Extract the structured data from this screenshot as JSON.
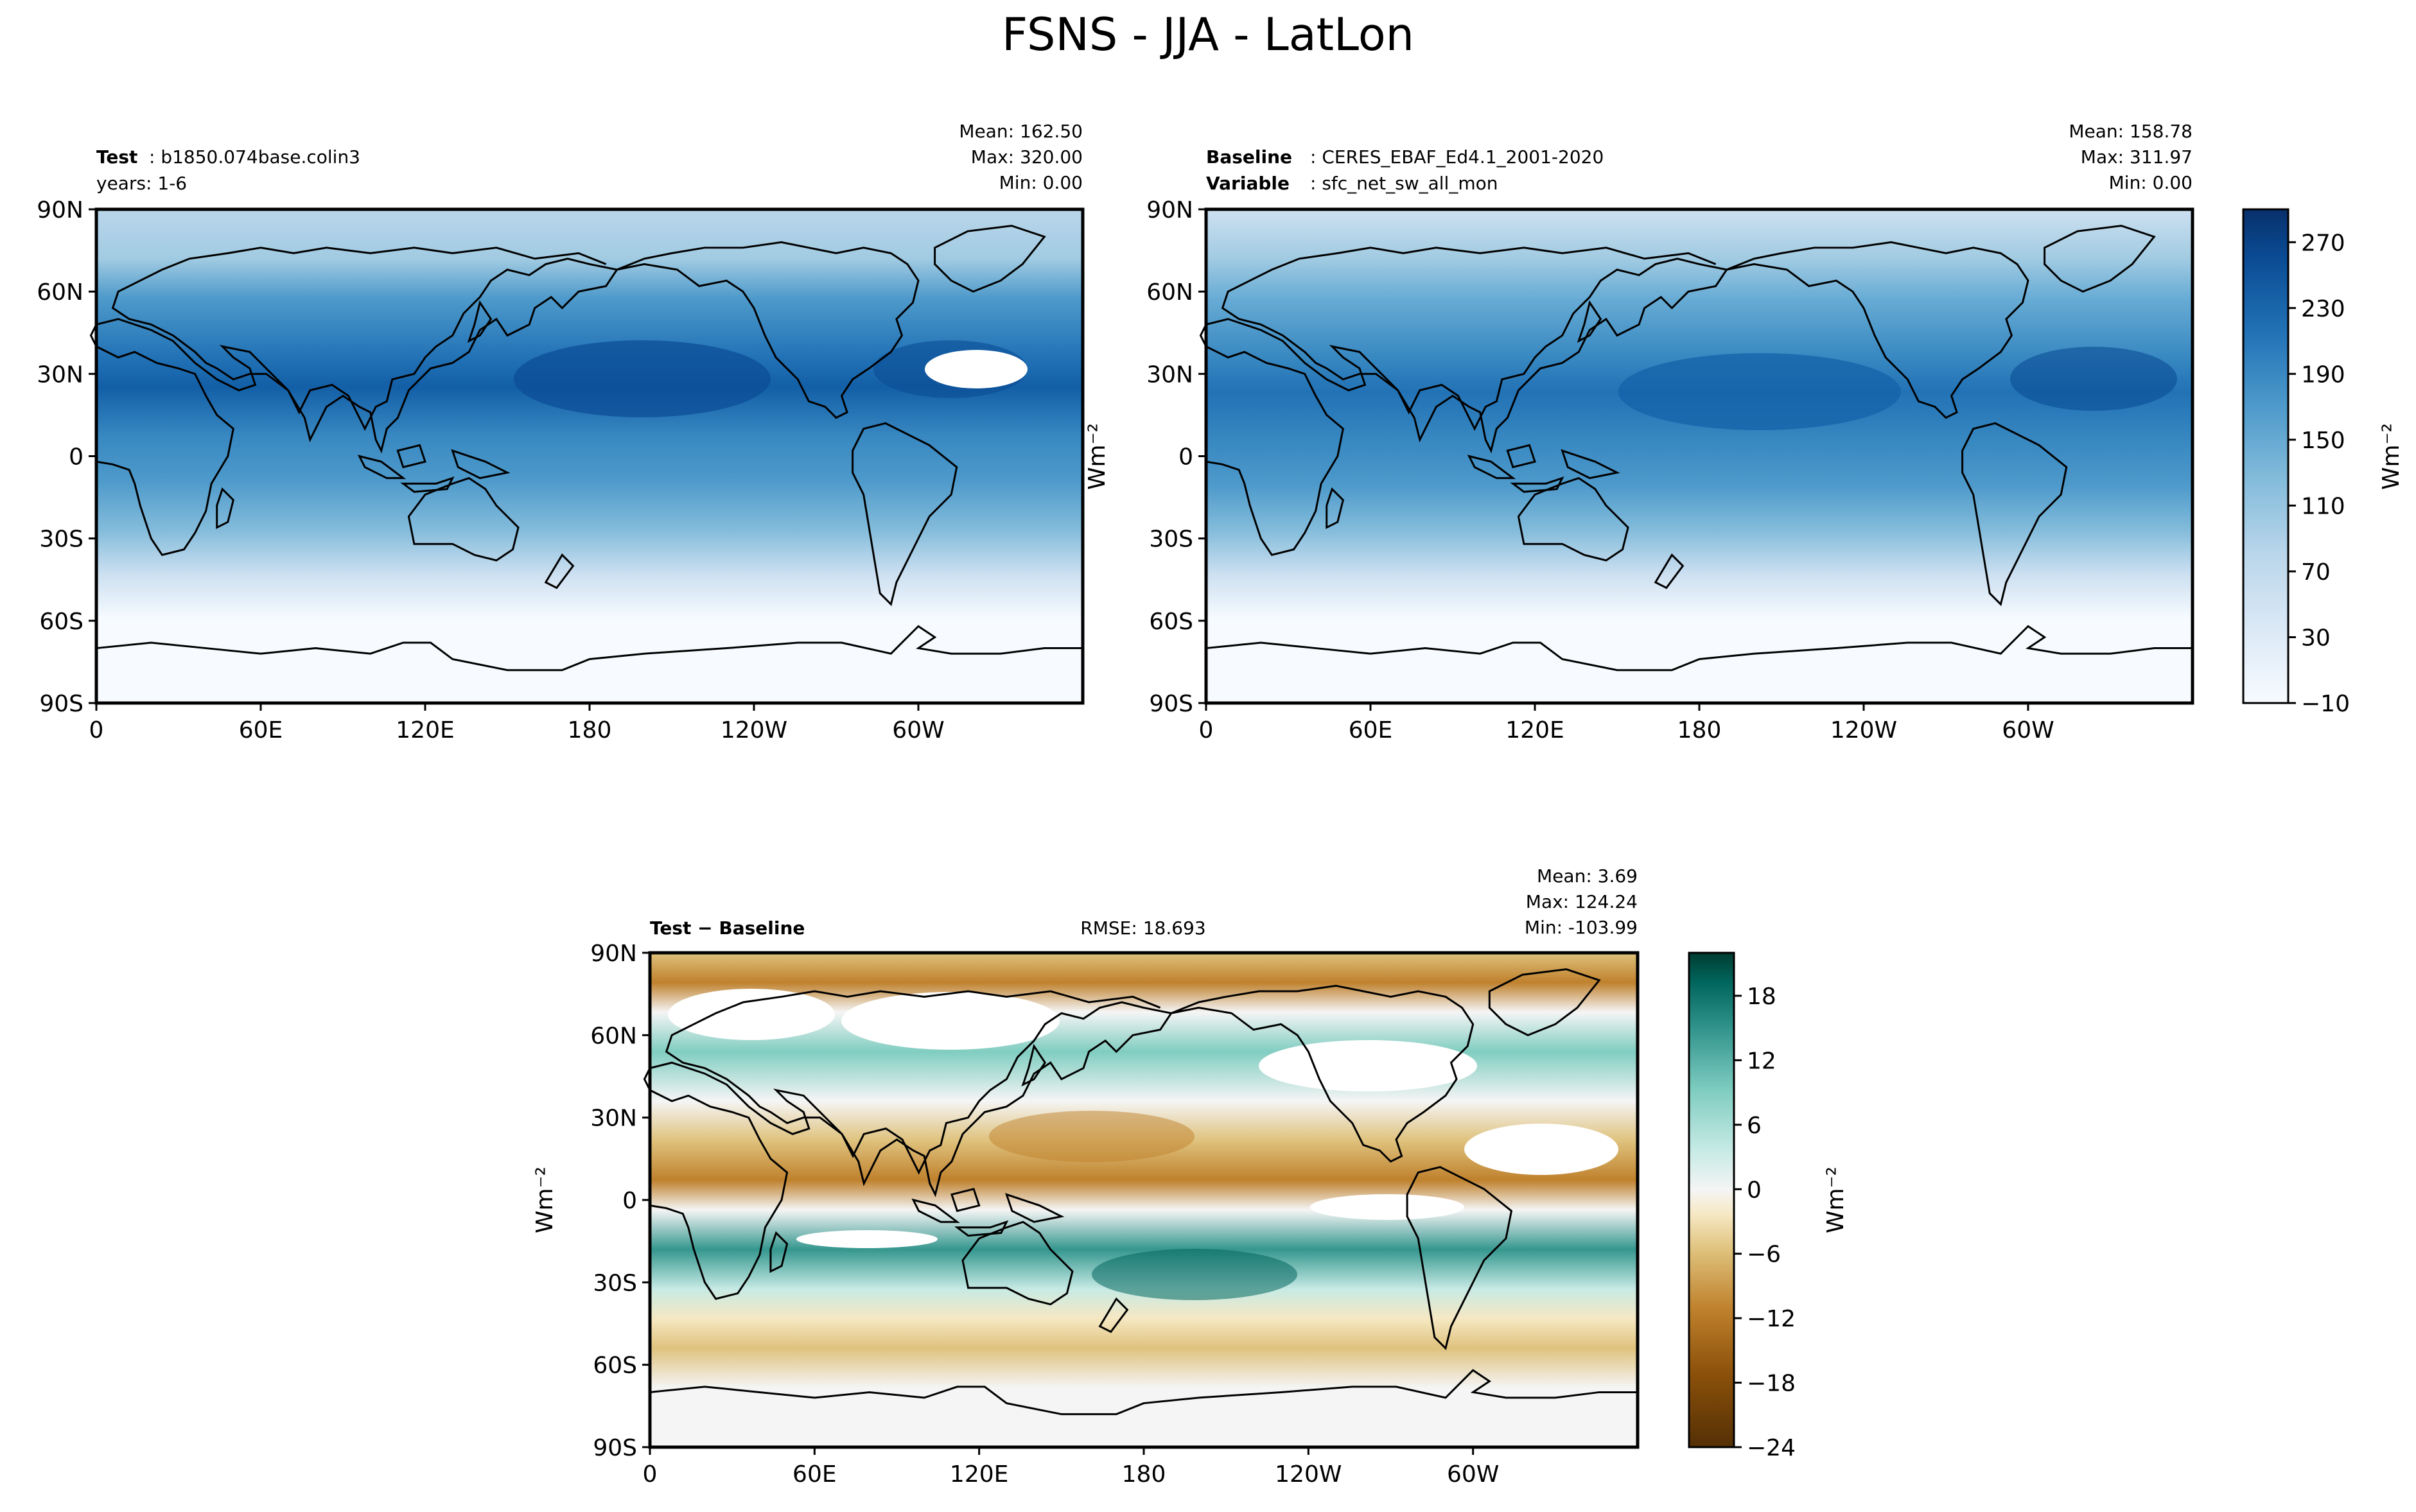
{
  "figure": {
    "title": "FSNS - JJA - LatLon"
  },
  "colors": {
    "blues": [
      "#f7fbff",
      "#e9f2fa",
      "#dbe9f6",
      "#cde0f1",
      "#bad6eb",
      "#a1cbe2",
      "#84bcdb",
      "#68acd5",
      "#4e9acb",
      "#3888c1",
      "#2272b6",
      "#135fa7",
      "#0a4c95",
      "#08306b"
    ],
    "diverging": [
      "#543005",
      "#8c510a",
      "#bf812d",
      "#dfc27d",
      "#f6e8c3",
      "#f5f5f5",
      "#c7eae5",
      "#80cdc1",
      "#35978f",
      "#01665e",
      "#003c30"
    ],
    "land_line": "#000000"
  },
  "chart_data": [
    {
      "type": "heatmap",
      "panel": "test",
      "label_bold": "Test",
      "label_text": ": b1850.074base.colin3",
      "label_line2": "years: 1-6",
      "stats": {
        "mean": "Mean: 162.50",
        "max": "Max: 320.00",
        "min": "Min:  0.00"
      },
      "xticks": [
        "0",
        "60E",
        "120E",
        "180",
        "120W",
        "60W"
      ],
      "xtick_values": [
        0,
        60,
        120,
        180,
        240,
        300
      ],
      "yticks": [
        "90N",
        "60N",
        "30N",
        "0",
        "30S",
        "60S",
        "90S"
      ],
      "ytick_values": [
        90,
        60,
        30,
        0,
        -30,
        -60,
        -90
      ],
      "xlim": [
        0,
        360
      ],
      "ylim": [
        -90,
        90
      ],
      "ylabel": "Wm⁻²"
    },
    {
      "type": "heatmap",
      "panel": "baseline",
      "label_bold": "Baseline",
      "label_text": ": CERES_EBAF_Ed4.1_2001-2020",
      "label_bold2": "Variable",
      "label_text2": ": sfc_net_sw_all_mon",
      "stats": {
        "mean": "Mean: 158.78",
        "max": "Max: 311.97",
        "min": "Min:  0.00"
      },
      "xticks": [
        "0",
        "60E",
        "120E",
        "180",
        "120W",
        "60W"
      ],
      "xtick_values": [
        0,
        60,
        120,
        180,
        240,
        300
      ],
      "yticks": [
        "90N",
        "60N",
        "30N",
        "0",
        "30S",
        "60S",
        "90S"
      ],
      "ytick_values": [
        90,
        60,
        30,
        0,
        -30,
        -60,
        -90
      ],
      "xlim": [
        0,
        360
      ],
      "ylim": [
        -90,
        90
      ],
      "colorbar": {
        "ticks": [
          "270",
          "230",
          "190",
          "150",
          "110",
          "70",
          "30",
          "−10"
        ],
        "tick_values": [
          270,
          230,
          190,
          150,
          110,
          70,
          30,
          -10
        ],
        "range": [
          -10,
          290
        ],
        "label": "Wm⁻²"
      }
    },
    {
      "type": "heatmap",
      "panel": "difference",
      "label_bold": "Test − Baseline",
      "rmse": "RMSE: 18.693",
      "stats": {
        "mean": "Mean:  3.69",
        "max": "Max: 124.24",
        "min": "Min: -103.99"
      },
      "xticks": [
        "0",
        "60E",
        "120E",
        "180",
        "120W",
        "60W"
      ],
      "xtick_values": [
        0,
        60,
        120,
        180,
        240,
        300
      ],
      "yticks": [
        "90N",
        "60N",
        "30N",
        "0",
        "30S",
        "60S",
        "90S"
      ],
      "ytick_values": [
        90,
        60,
        30,
        0,
        -30,
        -60,
        -90
      ],
      "xlim": [
        0,
        360
      ],
      "ylim": [
        -90,
        90
      ],
      "ylabel": "Wm⁻²",
      "colorbar": {
        "ticks": [
          "18",
          "12",
          "6",
          "0",
          "−6",
          "−12",
          "−18",
          "−24"
        ],
        "tick_values": [
          18,
          12,
          6,
          0,
          -6,
          -12,
          -18,
          -24
        ],
        "range": [
          -24,
          22
        ],
        "label": "Wm⁻²"
      }
    }
  ]
}
